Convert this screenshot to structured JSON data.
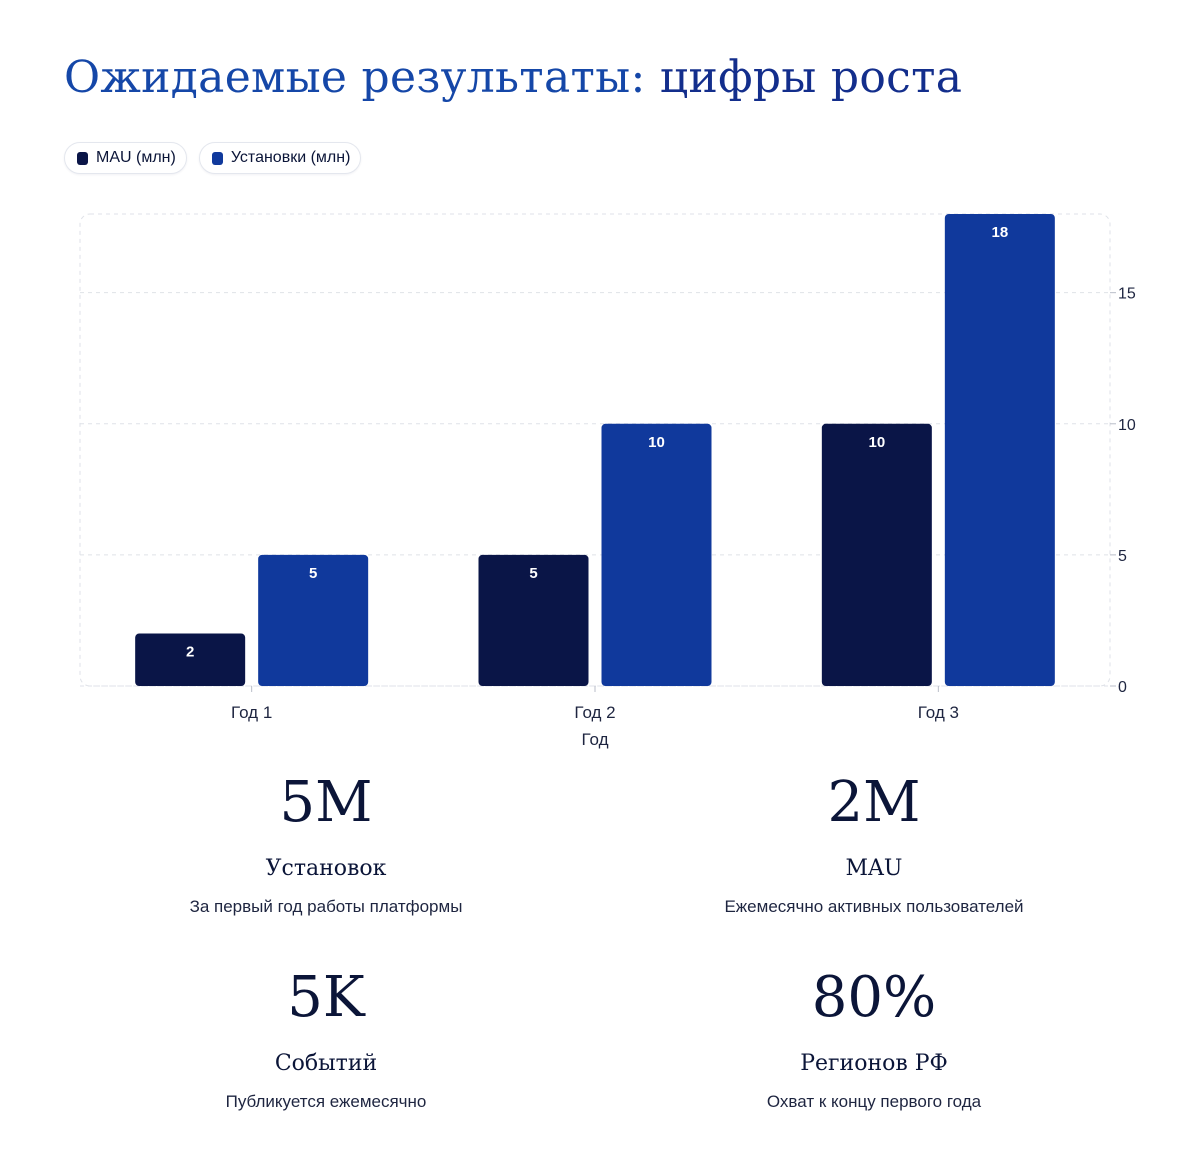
{
  "title_part1": "Ожидаемые результаты: ",
  "title_part2": "цифры роста",
  "colors": {
    "mau": "#0a1547",
    "installs": "#10399c",
    "title": "#1547a8"
  },
  "chart_data": {
    "type": "bar",
    "categories": [
      "Год 1",
      "Год 2",
      "Год 3"
    ],
    "series": [
      {
        "name": "MAU (млн)",
        "values": [
          2,
          5,
          10
        ],
        "color": "#0a1547"
      },
      {
        "name": "Установки (млн)",
        "values": [
          5,
          10,
          18
        ],
        "color": "#10399c"
      }
    ],
    "xlabel": "Год",
    "ylabel": "",
    "ylim": [
      0,
      18
    ],
    "yticks": [
      0,
      5,
      10,
      15
    ],
    "y_axis_side": "right",
    "grid": true,
    "legend_position": "top-left"
  },
  "stats": [
    {
      "value": "5M",
      "label": "Установок",
      "desc": "За первый год работы платформы"
    },
    {
      "value": "2M",
      "label": "MAU",
      "desc": "Ежемесячно активных пользователей"
    },
    {
      "value": "5K",
      "label": "Событий",
      "desc": "Публикуется ежемесячно"
    },
    {
      "value": "80%",
      "label": "Регионов РФ",
      "desc": "Охват к концу первого года"
    }
  ]
}
